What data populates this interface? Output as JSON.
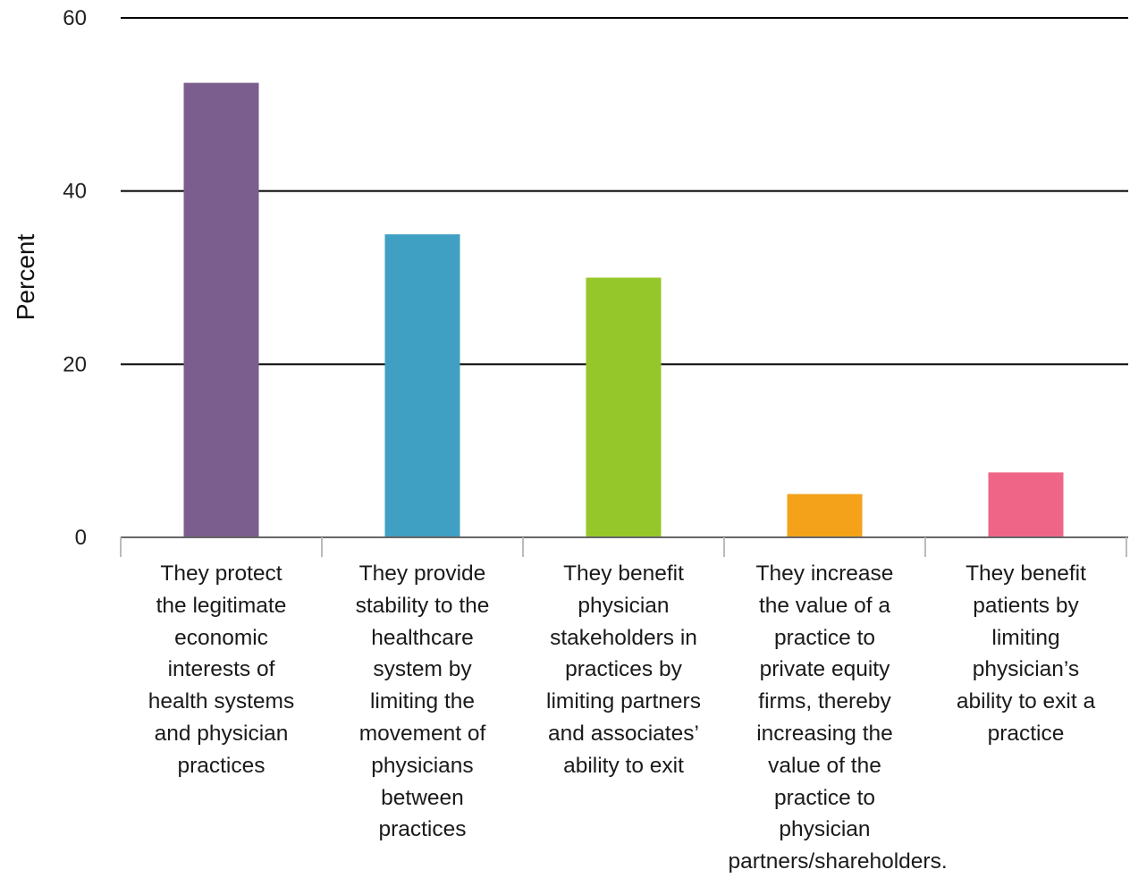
{
  "chart_data": {
    "type": "bar",
    "title": "",
    "xlabel": "",
    "ylabel": "Percent",
    "ylim": [
      0,
      60
    ],
    "yticks": [
      0,
      20,
      40,
      60
    ],
    "grid": true,
    "legend": "none",
    "categories": [
      "They protect the legitimate economic interests of health systems and physician practices",
      "They provide stability to the healthcare system by limiting the movement of physicians between practices",
      "They benefit physician stakeholders in practices by limiting partners and associates’ ability to exit",
      "They increase the value of a practice to private equity firms, thereby increasing the value of the practice to physician partners/shareholders.",
      "They benefit patients by limiting physician’s ability to exit a practice"
    ],
    "category_lines": [
      [
        "They protect",
        "the legitimate",
        "economic",
        "interests of",
        "health systems",
        "and physician",
        "practices"
      ],
      [
        "They provide",
        "stability to the",
        "healthcare",
        "system by",
        "limiting the",
        "movement of",
        "physicians",
        "between",
        "practices"
      ],
      [
        "They benefit",
        "physician",
        "stakeholders in",
        "practices by",
        "limiting partners",
        "and associates’",
        "ability to exit"
      ],
      [
        "They increase",
        "the value of a",
        "practice to",
        "private equity",
        "firms, thereby",
        "increasing the",
        "value of the",
        "practice to",
        "physician",
        "partners/shareholders."
      ],
      [
        "They benefit",
        "patients by",
        "limiting",
        "physician’s",
        "ability to exit a",
        "practice"
      ]
    ],
    "values": [
      52.5,
      35,
      30,
      5,
      7.5
    ],
    "colors": [
      "#7b5e8e",
      "#3fa0c3",
      "#96c72a",
      "#f4a21a",
      "#ef6588"
    ]
  }
}
